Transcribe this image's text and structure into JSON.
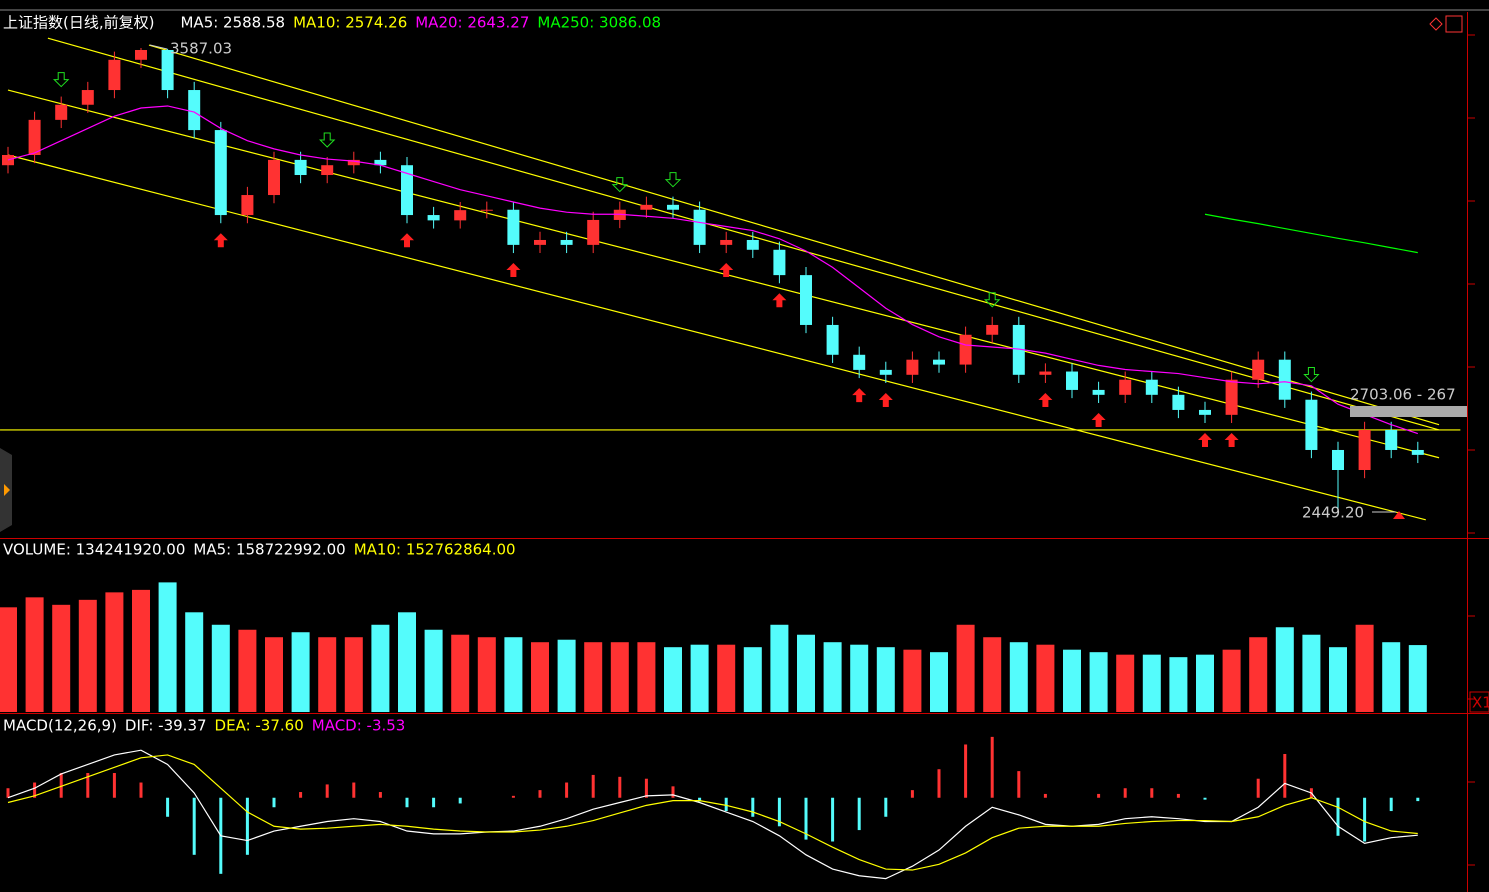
{
  "chart_data": [
    {
      "type": "candlestick",
      "header": [
        {
          "text": "上证指数(日线,前复权)",
          "color": "#ffffff"
        },
        {
          "text": "MA5: 2588.58",
          "color": "#ffffff"
        },
        {
          "text": "MA10: 2574.26",
          "color": "#ffff00"
        },
        {
          "text": "MA20: 2643.27",
          "color": "#ff00ff"
        },
        {
          "text": "MA250: 3086.08",
          "color": "#00ff00"
        }
      ],
      "open": [
        3300,
        3325,
        3411,
        3448,
        3484,
        3558,
        3582,
        3484,
        3386,
        3178,
        3227,
        3313,
        3276,
        3300,
        3313,
        3300,
        3178,
        3165,
        3190,
        3191,
        3105,
        3117,
        3105,
        3166,
        3191,
        3203,
        3191,
        3105,
        3117,
        3093,
        3031,
        2909,
        2836,
        2799,
        2787,
        2824,
        2812,
        2885,
        2909,
        2787,
        2795,
        2750,
        2738,
        2775,
        2738,
        2701,
        2689,
        2775,
        2824,
        2726,
        2603,
        2554,
        2652,
        2603
      ],
      "high": [
        3345,
        3431,
        3468,
        3504,
        3578,
        3587.03,
        3585,
        3504,
        3406,
        3247,
        3333,
        3333,
        3320,
        3333,
        3333,
        3320,
        3198,
        3210,
        3211,
        3211,
        3137,
        3137,
        3186,
        3211,
        3223,
        3223,
        3211,
        3137,
        3137,
        3113,
        3051,
        2929,
        2856,
        2819,
        2844,
        2844,
        2905,
        2929,
        2929,
        2815,
        2815,
        2770,
        2795,
        2795,
        2758,
        2721,
        2795,
        2844,
        2844,
        2746,
        2623,
        2672,
        2672,
        2623
      ],
      "low": [
        3280,
        3305,
        3391,
        3428,
        3464,
        3538,
        3464,
        3366,
        3158,
        3158,
        3207,
        3256,
        3256,
        3280,
        3280,
        3158,
        3145,
        3145,
        3170,
        3085,
        3085,
        3085,
        3085,
        3146,
        3171,
        3171,
        3085,
        3085,
        3073,
        3011,
        2889,
        2816,
        2779,
        2767,
        2767,
        2792,
        2792,
        2865,
        2767,
        2767,
        2730,
        2718,
        2718,
        2718,
        2681,
        2669,
        2669,
        2755,
        2706,
        2583,
        2449.2,
        2534,
        2583,
        2571
      ],
      "close": [
        3325,
        3411,
        3448,
        3484,
        3558,
        3582,
        3484,
        3386,
        3178,
        3227,
        3313,
        3276,
        3300,
        3313,
        3300,
        3178,
        3165,
        3190,
        3191,
        3105,
        3117,
        3105,
        3166,
        3191,
        3203,
        3191,
        3105,
        3117,
        3093,
        3031,
        2909,
        2836,
        2799,
        2787,
        2824,
        2812,
        2885,
        2909,
        2787,
        2795,
        2750,
        2738,
        2775,
        2738,
        2701,
        2689,
        2775,
        2824,
        2726,
        2603,
        2554,
        2652,
        2603,
        2591
      ],
      "up_color": "#ff3232",
      "down_color": "#54fcfc",
      "series": [
        {
          "name": "MA20",
          "color": "#ff00ff",
          "values": [
            3313,
            3330,
            3360,
            3390,
            3420,
            3440,
            3445,
            3430,
            3390,
            3360,
            3340,
            3325,
            3315,
            3310,
            3300,
            3280,
            3260,
            3240,
            3225,
            3210,
            3195,
            3185,
            3180,
            3180,
            3175,
            3170,
            3160,
            3150,
            3140,
            3120,
            3090,
            3050,
            3000,
            2950,
            2910,
            2880,
            2860,
            2855,
            2850,
            2840,
            2825,
            2810,
            2800,
            2795,
            2790,
            2780,
            2770,
            2765,
            2770,
            2760,
            2715,
            2690,
            2665,
            2643.27
          ]
        },
        {
          "name": "MA250",
          "color": "#00ff00",
          "values": [
            null,
            null,
            null,
            null,
            null,
            null,
            null,
            null,
            null,
            null,
            null,
            null,
            null,
            null,
            null,
            null,
            null,
            null,
            null,
            null,
            null,
            null,
            null,
            null,
            null,
            null,
            null,
            null,
            null,
            null,
            null,
            null,
            null,
            null,
            null,
            null,
            null,
            null,
            null,
            null,
            null,
            null,
            null,
            null,
            null,
            3180,
            3168,
            3157,
            3145,
            3133,
            3121,
            3110,
            3098,
            3086.08
          ]
        }
      ],
      "trendlines": [
        {
          "x": [
            1.5,
            53.8
          ],
          "y": [
            3611,
            2652
          ]
        },
        {
          "x": [
            5.3,
            53.8
          ],
          "y": [
            3594,
            2665
          ]
        },
        {
          "x": [
            0,
            53.8
          ],
          "y": [
            3484,
            2584
          ]
        },
        {
          "x": [
            0,
            53.3
          ],
          "y": [
            3325,
            2432
          ]
        },
        {
          "x": [
            -0.3,
            54.6
          ],
          "y": [
            2652,
            2652
          ]
        }
      ],
      "trend_color": "#ffff00",
      "buy_signals": [
        8,
        15,
        19,
        27,
        29,
        32,
        33,
        39,
        41,
        45,
        46
      ],
      "sell_signals": [
        2,
        12,
        23,
        25,
        37,
        49
      ],
      "annotations": [
        {
          "text": "3587.03"
        },
        {
          "text": "2449.20"
        },
        {
          "text": "2703.06 - 267"
        }
      ],
      "ylim": [
        2390,
        3675
      ]
    },
    {
      "type": "bar",
      "header": [
        {
          "text": "VOLUME: 134241920.00",
          "color": "#ffffff"
        },
        {
          "text": "MA5: 158722992.00",
          "color": "#ffffff"
        },
        {
          "text": "MA10: 152762864.00",
          "color": "#ffff00"
        }
      ],
      "values": [
        210000000,
        230000000,
        215000000,
        225000000,
        240000000,
        245000000,
        260000000,
        200000000,
        175000000,
        165000000,
        150000000,
        160000000,
        150000000,
        150000000,
        175000000,
        200000000,
        165000000,
        155000000,
        150000000,
        150000000,
        140000000,
        145000000,
        140000000,
        140000000,
        140000000,
        130000000,
        135000000,
        135000000,
        130000000,
        175000000,
        155000000,
        140000000,
        135000000,
        130000000,
        125000000,
        120000000,
        175000000,
        150000000,
        140000000,
        135000000,
        125000000,
        120000000,
        115000000,
        115000000,
        110000000,
        115000000,
        125000000,
        150000000,
        170000000,
        155000000,
        130000000,
        175000000,
        140000000,
        134241920
      ],
      "corner_label": "X1",
      "ylim": [
        0,
        335000000
      ]
    },
    {
      "type": "macd",
      "header": [
        {
          "text": "MACD(12,26,9)",
          "color": "#ffffff"
        },
        {
          "text": "DIF: -39.37",
          "color": "#ffffff"
        },
        {
          "text": "DEA: -37.60",
          "color": "#ffff00"
        },
        {
          "text": "MACD: -3.53",
          "color": "#ff00ff"
        }
      ],
      "series": [
        {
          "name": "DIF",
          "color": "#ffffff",
          "values": [
            0,
            10,
            25,
            35,
            45,
            50,
            35,
            5,
            -40,
            -45,
            -35,
            -30,
            -25,
            -22,
            -25,
            -35,
            -38,
            -38,
            -36,
            -35,
            -30,
            -22,
            -12,
            -5,
            2,
            3,
            -5,
            -15,
            -25,
            -40,
            -60,
            -75,
            -82,
            -85,
            -72,
            -55,
            -30,
            -10,
            -18,
            -28,
            -30,
            -28,
            -22,
            -20,
            -22,
            -25,
            -25,
            -10,
            15,
            5,
            -30,
            -48,
            -42,
            -39.37
          ]
        },
        {
          "name": "DEA",
          "color": "#ffff00",
          "values": [
            -5,
            2,
            12,
            22,
            32,
            42,
            45,
            35,
            10,
            -15,
            -30,
            -33,
            -32,
            -30,
            -28,
            -30,
            -33,
            -35,
            -36,
            -36,
            -34,
            -30,
            -24,
            -16,
            -8,
            -3,
            -3,
            -8,
            -15,
            -25,
            -38,
            -52,
            -65,
            -75,
            -76,
            -70,
            -58,
            -42,
            -32,
            -30,
            -30,
            -30,
            -27,
            -25,
            -24,
            -24,
            -25,
            -20,
            -8,
            0,
            -10,
            -25,
            -35,
            -37.6
          ]
        }
      ],
      "hist": [
        10,
        16,
        26,
        26,
        26,
        16,
        -20,
        -60,
        -80,
        -60,
        -10,
        6,
        14,
        16,
        6,
        -10,
        -10,
        -6,
        0,
        2,
        8,
        16,
        24,
        22,
        20,
        12,
        -4,
        -14,
        -20,
        -30,
        -44,
        -46,
        -34,
        -20,
        8,
        30,
        56,
        64,
        28,
        4,
        0,
        4,
        10,
        10,
        4,
        -2,
        0,
        20,
        46,
        10,
        -40,
        -46,
        -14,
        -3.53
      ],
      "pos_color": "#ff3232",
      "neg_color": "#54fcfc",
      "ylim": [
        -97,
        87
      ]
    }
  ]
}
